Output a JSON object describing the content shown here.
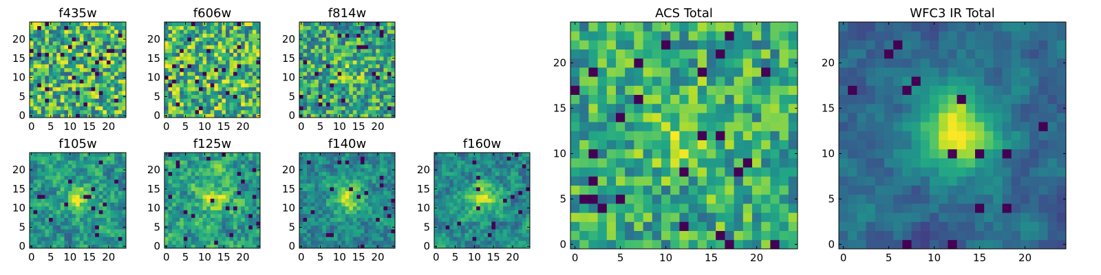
{
  "chart_data": [
    {
      "type": "heatmap",
      "title": "f435w",
      "grid": {
        "nx": 25,
        "ny": 25
      },
      "x_ticks": [
        0,
        5,
        10,
        15,
        20
      ],
      "y_ticks": [
        0,
        5,
        10,
        15,
        20
      ],
      "colormap": "viridis",
      "pattern": "noise",
      "seed": 11,
      "peak": 0.0
    },
    {
      "type": "heatmap",
      "title": "f606w",
      "grid": {
        "nx": 25,
        "ny": 25
      },
      "x_ticks": [
        0,
        5,
        10,
        15,
        20
      ],
      "y_ticks": [
        0,
        5,
        10,
        15,
        20
      ],
      "colormap": "viridis",
      "pattern": "noise",
      "seed": 23,
      "peak": 0.0
    },
    {
      "type": "heatmap",
      "title": "f814w",
      "grid": {
        "nx": 25,
        "ny": 25
      },
      "x_ticks": [
        0,
        5,
        10,
        15,
        20
      ],
      "y_ticks": [
        0,
        5,
        10,
        15,
        20
      ],
      "colormap": "viridis",
      "pattern": "noise",
      "seed": 37,
      "peak": 0.15
    },
    {
      "type": "heatmap",
      "title": "f105w",
      "grid": {
        "nx": 25,
        "ny": 25
      },
      "x_ticks": [
        0,
        5,
        10,
        15,
        20
      ],
      "y_ticks": [
        0,
        5,
        10,
        15,
        20
      ],
      "colormap": "viridis",
      "pattern": "source",
      "seed": 41,
      "peak": 0.35
    },
    {
      "type": "heatmap",
      "title": "f125w",
      "grid": {
        "nx": 25,
        "ny": 25
      },
      "x_ticks": [
        0,
        5,
        10,
        15,
        20
      ],
      "y_ticks": [
        0,
        5,
        10,
        15,
        20
      ],
      "colormap": "viridis",
      "pattern": "source",
      "seed": 53,
      "peak": 0.3
    },
    {
      "type": "heatmap",
      "title": "f140w",
      "grid": {
        "nx": 25,
        "ny": 25
      },
      "x_ticks": [
        0,
        5,
        10,
        15,
        20
      ],
      "y_ticks": [
        0,
        5,
        10,
        15,
        20
      ],
      "colormap": "viridis",
      "pattern": "source",
      "seed": 67,
      "peak": 0.45
    },
    {
      "type": "heatmap",
      "title": "f160w",
      "grid": {
        "nx": 25,
        "ny": 25
      },
      "x_ticks": [
        0,
        5,
        10,
        15,
        20
      ],
      "y_ticks": [
        0,
        5,
        10,
        15,
        20
      ],
      "colormap": "viridis",
      "pattern": "source",
      "seed": 79,
      "peak": 0.45
    },
    {
      "type": "heatmap",
      "title": "ACS Total",
      "grid": {
        "nx": 25,
        "ny": 25
      },
      "x_ticks": [
        0,
        5,
        10,
        15,
        20
      ],
      "y_ticks": [
        0,
        5,
        10,
        15,
        20
      ],
      "colormap": "viridis",
      "pattern": "bright-noise",
      "seed": 91,
      "peak": 0.25
    },
    {
      "type": "heatmap",
      "title": "WFC3 IR Total",
      "grid": {
        "nx": 25,
        "ny": 25
      },
      "x_ticks": [
        0,
        5,
        10,
        15,
        20
      ],
      "y_ticks": [
        0,
        5,
        10,
        15,
        20
      ],
      "colormap": "viridis",
      "pattern": "smooth-source",
      "seed": 103,
      "peak": 0.9
    }
  ]
}
